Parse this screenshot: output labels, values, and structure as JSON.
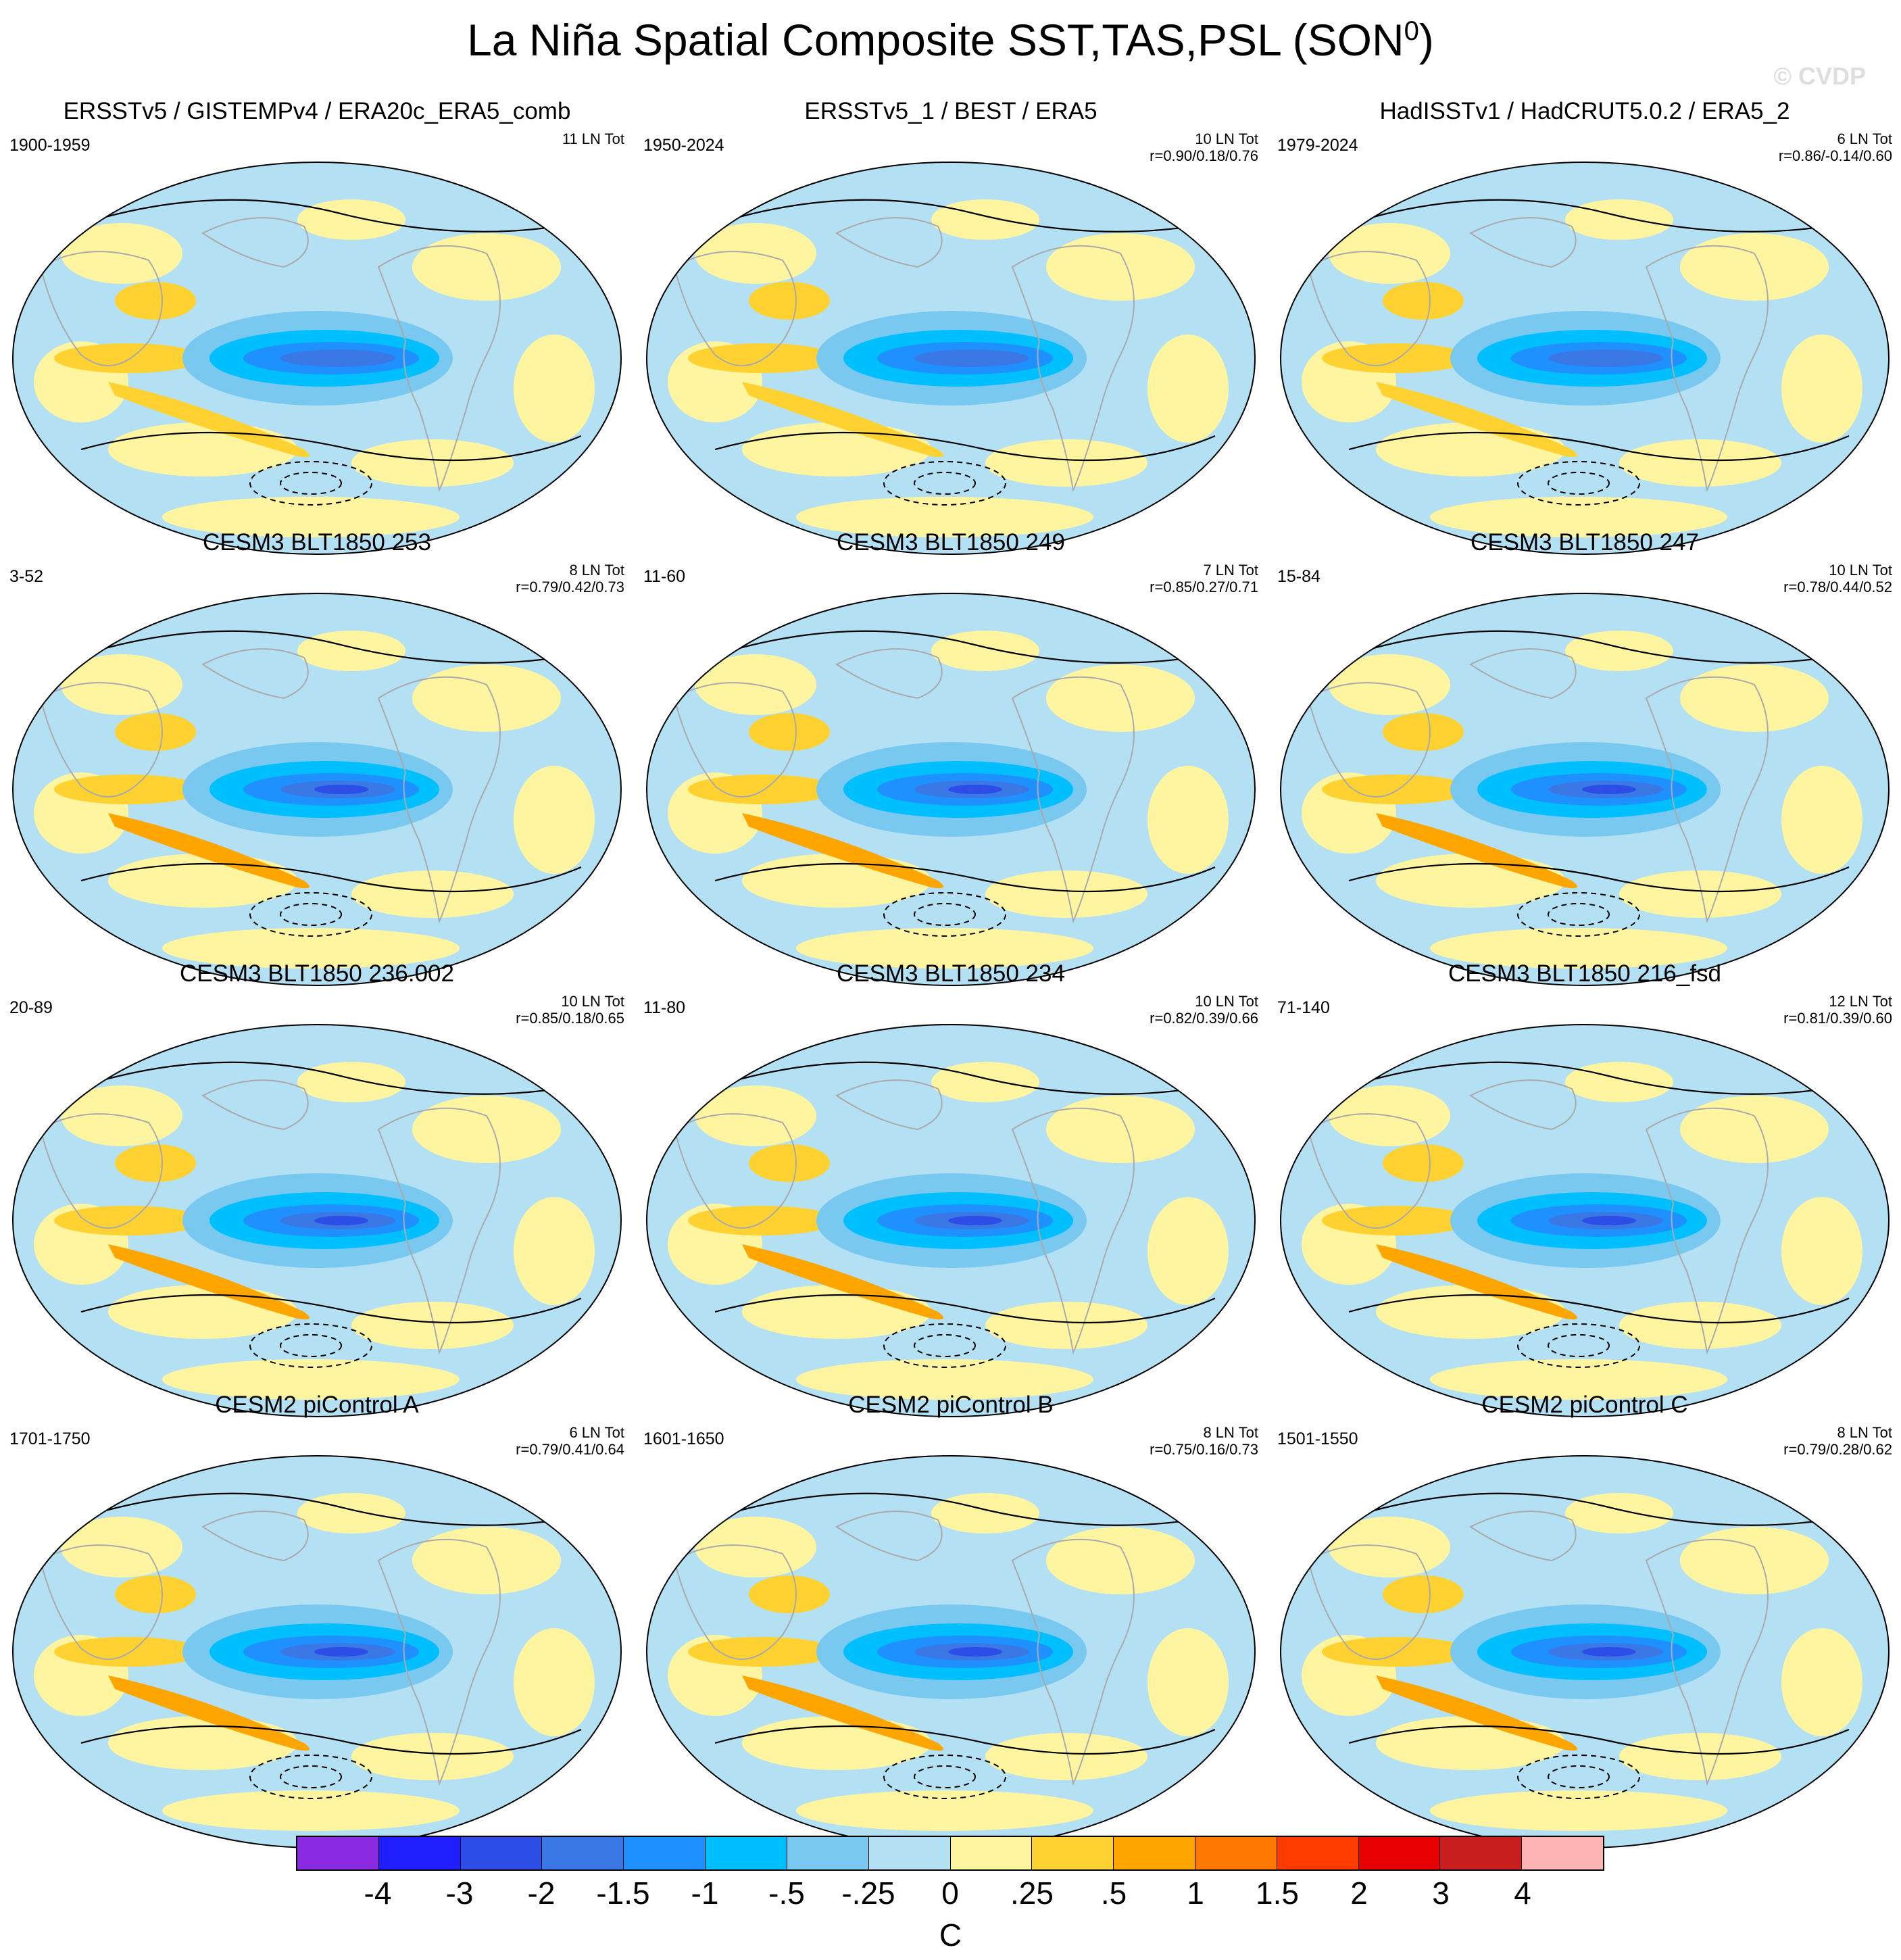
{
  "title": "La Niña Spatial Composite SST,TAS,PSL (SON",
  "title_sup": "0",
  "title_close": ")",
  "watermark": "© CVDP",
  "panels": [
    {
      "title": "ERSSTv5 / GISTEMPv4 / ERA20c_ERA5_comb",
      "years": "1900-1959",
      "stat1": "11 LN Tot",
      "stat2": ""
    },
    {
      "title": "ERSSTv5_1 / BEST / ERA5",
      "years": "1950-2024",
      "stat1": "10 LN Tot",
      "stat2": "r=0.90/0.18/0.76"
    },
    {
      "title": "HadISSTv1 / HadCRUT5.0.2 / ERA5_2",
      "years": "1979-2024",
      "stat1": "6 LN Tot",
      "stat2": "r=0.86/-0.14/0.60"
    },
    {
      "title": "CESM3 BLT1850 253",
      "years": "3-52",
      "stat1": "8 LN Tot",
      "stat2": "r=0.79/0.42/0.73"
    },
    {
      "title": "CESM3 BLT1850 249",
      "years": "11-60",
      "stat1": "7 LN Tot",
      "stat2": "r=0.85/0.27/0.71"
    },
    {
      "title": "CESM3 BLT1850 247",
      "years": "15-84",
      "stat1": "10 LN Tot",
      "stat2": "r=0.78/0.44/0.52"
    },
    {
      "title": "CESM3 BLT1850 236.002",
      "years": "20-89",
      "stat1": "10 LN Tot",
      "stat2": "r=0.85/0.18/0.65"
    },
    {
      "title": "CESM3 BLT1850 234",
      "years": "11-80",
      "stat1": "10 LN Tot",
      "stat2": "r=0.82/0.39/0.66"
    },
    {
      "title": "CESM3 BLT1850 216_fsd",
      "years": "71-140",
      "stat1": "12 LN Tot",
      "stat2": "r=0.81/0.39/0.60"
    },
    {
      "title": "CESM2 piControl A",
      "years": "1701-1750",
      "stat1": "6 LN Tot",
      "stat2": "r=0.79/0.41/0.64"
    },
    {
      "title": "CESM2 piControl B",
      "years": "1601-1650",
      "stat1": "8 LN Tot",
      "stat2": "r=0.75/0.16/0.73"
    },
    {
      "title": "CESM2 piControl C",
      "years": "1501-1550",
      "stat1": "8 LN Tot",
      "stat2": "r=0.79/0.28/0.62"
    }
  ],
  "colorbar": {
    "colors": [
      "#8a2be2",
      "#1e1eff",
      "#2d4ee6",
      "#3a78e6",
      "#1e90ff",
      "#00bfff",
      "#78c8f0",
      "#b4e0f4",
      "#fff5a0",
      "#ffd232",
      "#ffa500",
      "#ff7800",
      "#ff3c00",
      "#e60000",
      "#c81e1e",
      "#ffb4b4"
    ],
    "labels": [
      "-4",
      "-3",
      "-2",
      "-1.5",
      "-1",
      "-.5",
      "-.25",
      "0",
      ".25",
      ".5",
      "1",
      "1.5",
      "2",
      "3",
      "4"
    ],
    "unit": "C"
  }
}
